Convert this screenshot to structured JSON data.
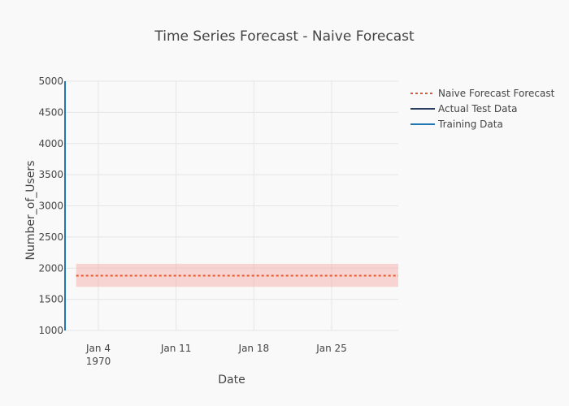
{
  "chart_data": {
    "type": "line",
    "title": "Time Series Forecast - Naive Forecast",
    "xlabel": "Date",
    "ylabel": "Number_of_Users",
    "x_axis": {
      "type": "date",
      "range": [
        "1970-01-01",
        "1970-01-31"
      ],
      "ticks": [
        {
          "value": "1970-01-04",
          "label": "Jan 4",
          "sublabel": "1970"
        },
        {
          "value": "1970-01-11",
          "label": "Jan 11",
          "sublabel": ""
        },
        {
          "value": "1970-01-18",
          "label": "Jan 18",
          "sublabel": ""
        },
        {
          "value": "1970-01-25",
          "label": "Jan 25",
          "sublabel": ""
        }
      ]
    },
    "y_axis": {
      "range": [
        1000,
        5000
      ],
      "ticks": [
        1000,
        1500,
        2000,
        2500,
        3000,
        3500,
        4000,
        4500,
        5000
      ]
    },
    "grid": true,
    "legend_position": "top-right",
    "series": [
      {
        "name": "Naive Forecast Forecast",
        "style": "dotted",
        "color": "#e4572e",
        "x": [
          "1970-01-02",
          "1970-01-31"
        ],
        "y": [
          1880,
          1880
        ]
      },
      {
        "name": "Actual Test Data",
        "style": "solid",
        "color": "#2a3f5f",
        "x": [],
        "y": []
      },
      {
        "name": "Training Data",
        "style": "solid",
        "color": "#1f77b4",
        "x": [
          "1970-01-01",
          "1970-01-01"
        ],
        "y": [
          1000,
          5000
        ]
      }
    ],
    "confidence_band": {
      "color": "#f4a6a0",
      "x": [
        "1970-01-02",
        "1970-01-31"
      ],
      "lower": [
        1700,
        1700
      ],
      "upper": [
        2070,
        2070
      ]
    }
  }
}
